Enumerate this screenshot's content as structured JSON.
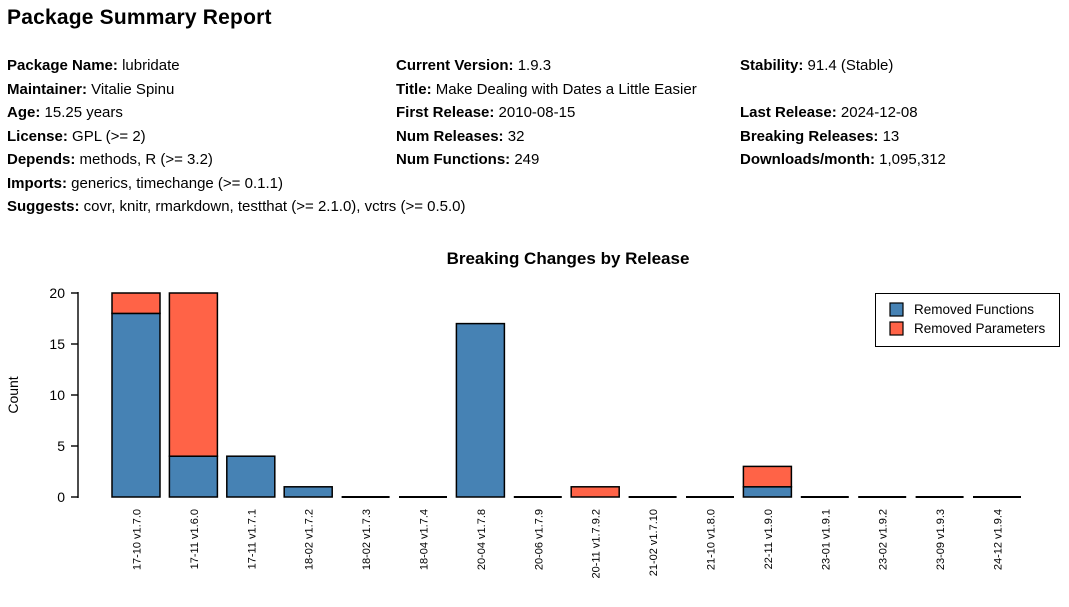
{
  "page": {
    "title": "Package Summary Report"
  },
  "header": {
    "columns": [
      {
        "fields": [
          {
            "label": "Package Name:",
            "value": "lubridate"
          },
          {
            "label": "Maintainer:",
            "value": "Vitalie Spinu"
          },
          {
            "label": "Age:",
            "value": "15.25 years"
          },
          {
            "label": "License:",
            "value": "GPL (>= 2)"
          },
          {
            "label": "Depends:",
            "value": "methods, R (>= 3.2)"
          },
          {
            "label": "Imports:",
            "value": "generics, timechange (>= 0.1.1)"
          },
          {
            "label": "Suggests:",
            "value": "covr, knitr, rmarkdown, testthat (>= 2.1.0), vctrs (>= 0.5.0)"
          }
        ]
      },
      {
        "fields": [
          {
            "label": "Current Version:",
            "value": "1.9.3"
          },
          {
            "label": "Title:",
            "value": "Make Dealing with Dates a Little Easier"
          },
          {
            "label": "First Release:",
            "value": "2010-08-15"
          },
          {
            "label": "Num Releases:",
            "value": "32"
          },
          {
            "label": "Num Functions:",
            "value": "249"
          }
        ]
      },
      {
        "fields": [
          {
            "label": "Stability:",
            "value": "91.4 (Stable)"
          },
          {
            "label": "",
            "value": ""
          },
          {
            "label": "Last Release:",
            "value": "2024-12-08"
          },
          {
            "label": "Breaking Releases:",
            "value": "13"
          },
          {
            "label": "Downloads/month:",
            "value": "1,095,312"
          }
        ]
      }
    ]
  },
  "chart_data": {
    "type": "bar",
    "stacked": true,
    "title": "Breaking Changes by Release",
    "xlabel": "",
    "ylabel": "Count",
    "ylim": [
      0,
      20
    ],
    "yticks": [
      0,
      5,
      10,
      15,
      20
    ],
    "grid": false,
    "legend_position": "top-right",
    "categories": [
      "17-10 v1.7.0",
      "17-11 v1.6.0",
      "17-11 v1.7.1",
      "18-02 v1.7.2",
      "18-02 v1.7.3",
      "18-04 v1.7.4",
      "20-04 v1.7.8",
      "20-06 v1.7.9",
      "20-11 v1.7.9.2",
      "21-02 v1.7.10",
      "21-10 v1.8.0",
      "22-11 v1.9.0",
      "23-01 v1.9.1",
      "23-02 v1.9.2",
      "23-09 v1.9.3",
      "24-12 v1.9.4"
    ],
    "series": [
      {
        "name": "Removed Functions",
        "color": "#4682B4",
        "values": [
          18,
          4,
          4,
          1,
          0,
          0,
          17,
          0,
          0,
          0,
          0,
          1,
          0,
          0,
          0,
          0
        ]
      },
      {
        "name": "Removed Parameters",
        "color": "#FF6347",
        "values": [
          2,
          16,
          0,
          0,
          0,
          0,
          0,
          0,
          1,
          0,
          0,
          2,
          0,
          0,
          0,
          0
        ]
      }
    ],
    "bar_border_color": "#000000",
    "text_color": "#000000",
    "background_color": "#FFFFFF"
  }
}
